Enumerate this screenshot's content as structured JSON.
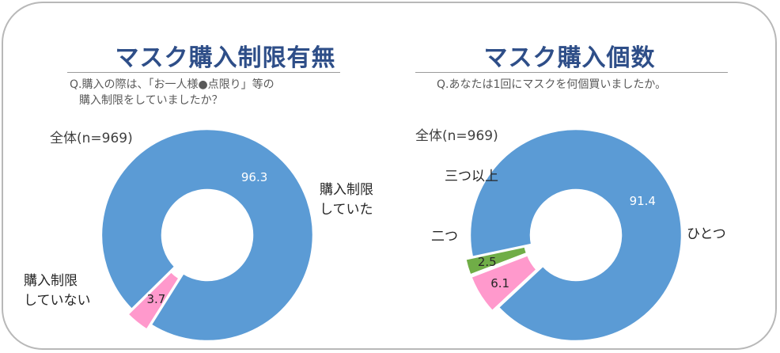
{
  "charts_text": {
    "left": {
      "title": "マスク購入制限有無",
      "question_line1": "Q.購入の際は、「お一人様●点限り」等の",
      "question_line2": "購入制限をしていましたか？",
      "total": "全体(n=969)"
    },
    "right": {
      "title": "マスク購入個数",
      "question_line1": "Q.あなたは1回にマスクを何個買いましたか。",
      "total": "全体(n=969)"
    }
  },
  "colors": {
    "blue": "#5b9bd5",
    "pink": "#ff99cc",
    "green": "#70ad47",
    "title": "#2e4e88"
  },
  "chart_data": [
    {
      "type": "pie",
      "title": "マスク購入制限有無",
      "categories": [
        "購入制限していた",
        "購入制限していない"
      ],
      "values": [
        96.3,
        3.7
      ],
      "labels": [
        "96.3",
        "3.7"
      ],
      "category_labels": [
        "購入制限\nしていた",
        "購入制限\nしていない"
      ],
      "legend": "none"
    },
    {
      "type": "pie",
      "title": "マスク購入個数",
      "categories": [
        "ひとつ",
        "二つ",
        "三つ以上"
      ],
      "values": [
        91.4,
        6.1,
        2.5
      ],
      "labels": [
        "91.4",
        "6.1",
        "2.5"
      ],
      "category_labels": [
        "ひとつ",
        "二つ",
        "三つ以上"
      ],
      "legend": "none"
    }
  ]
}
